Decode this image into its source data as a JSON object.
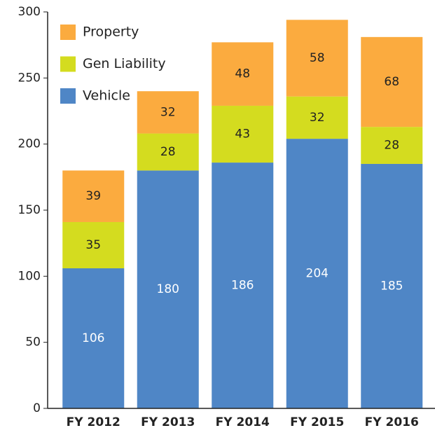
{
  "chart_data": {
    "type": "stacked_bar",
    "categories": [
      "FY 2012",
      "FY 2013",
      "FY 2014",
      "FY 2015",
      "FY 2016"
    ],
    "series": [
      {
        "name": "Vehicle",
        "color": "#4f86c6",
        "values": [
          106,
          180,
          186,
          204,
          185
        ]
      },
      {
        "name": "Gen Liability",
        "color": "#d4dc1f",
        "values": [
          35,
          28,
          43,
          32,
          28
        ]
      },
      {
        "name": "Property",
        "color": "#fbab3f",
        "values": [
          39,
          32,
          48,
          58,
          68
        ]
      }
    ],
    "ylim": [
      0,
      300
    ],
    "yticks": [
      0,
      50,
      100,
      150,
      200,
      250,
      300
    ],
    "grid": false,
    "legend": "top-left"
  }
}
